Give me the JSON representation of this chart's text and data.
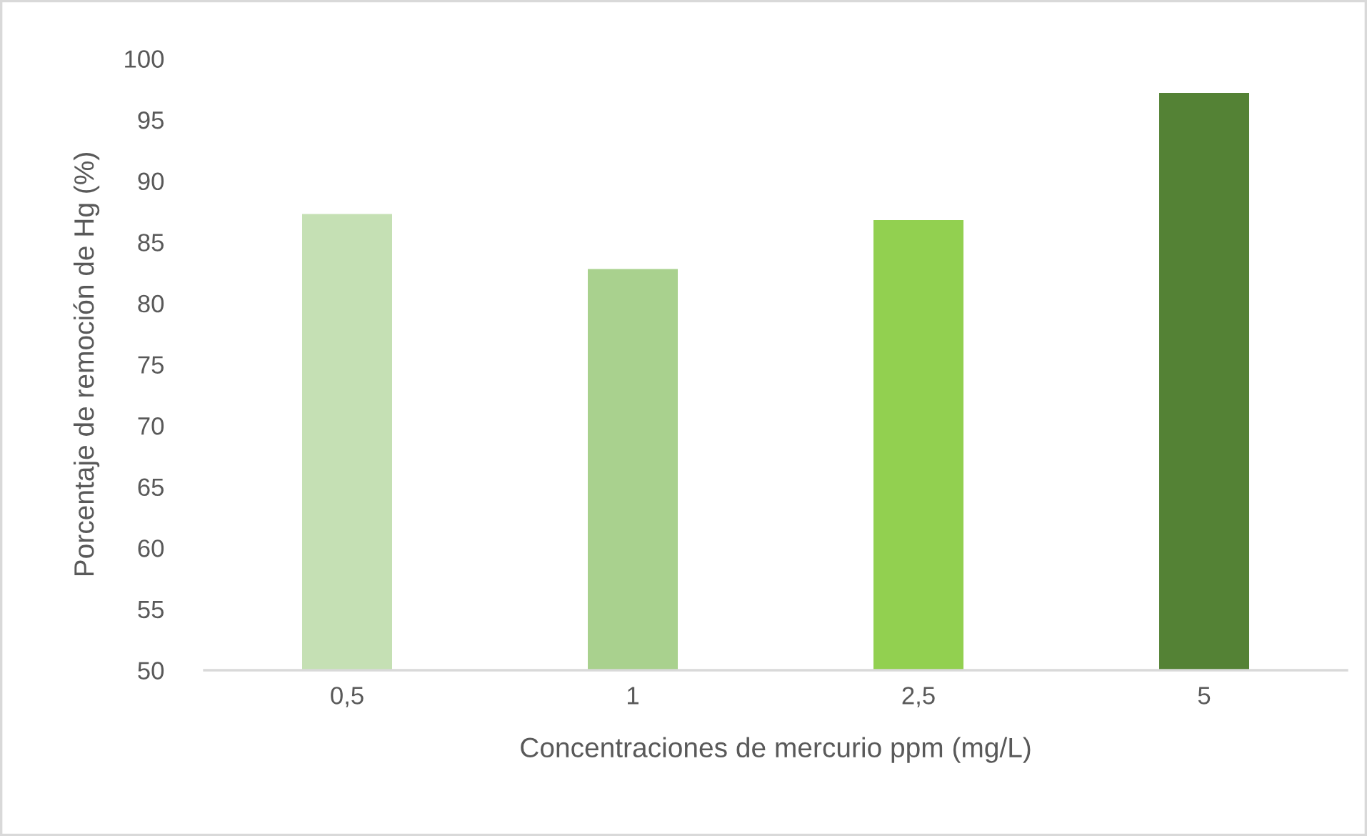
{
  "chart_data": {
    "type": "bar",
    "xlabel": "Concentraciones de mercurio ppm (mg/L)",
    "ylabel": "Porcentaje de remoción de Hg (%)",
    "categories": [
      "0,5",
      "1",
      "2,5",
      "5"
    ],
    "values": [
      87.3,
      82.8,
      86.8,
      97.2
    ],
    "colors": [
      "#c5e0b4",
      "#a9d18e",
      "#92d050",
      "#548235"
    ],
    "ylim": [
      50,
      100
    ],
    "yticks": [
      50,
      55,
      60,
      65,
      70,
      75,
      80,
      85,
      90,
      95,
      100
    ]
  }
}
